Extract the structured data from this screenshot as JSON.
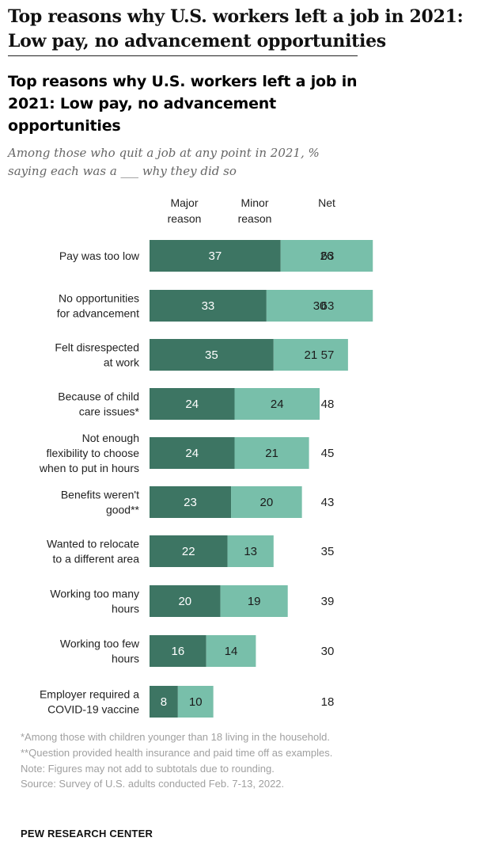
{
  "page": {
    "heading": "Top reasons why U.S. workers left a job in 2021: Low pay, no advancement opportunities"
  },
  "chart_data": {
    "type": "bar",
    "stacked": true,
    "orientation": "horizontal",
    "title": "Top reasons why U.S. workers left a job in 2021: Low pay, no advancement opportunities",
    "subtitle": "Among those who quit a job at any point in 2021, % saying each was a ___ why they did so",
    "column_headers": {
      "major": [
        "Major",
        "reason"
      ],
      "minor": [
        "Minor",
        "reason"
      ],
      "net": "Net"
    },
    "categories": [
      [
        "Pay was too low"
      ],
      [
        "No opportunities",
        "for advancement"
      ],
      [
        "Felt disrespected",
        "at work"
      ],
      [
        "Because of child",
        "care issues*"
      ],
      [
        "Not enough",
        "flexibility to choose",
        "when to put in hours"
      ],
      [
        "Benefits weren't",
        "good**"
      ],
      [
        "Wanted to relocate",
        "to a different area"
      ],
      [
        "Working too many",
        "hours"
      ],
      [
        "Working too few",
        "hours"
      ],
      [
        "Employer required a",
        "COVID-19 vaccine"
      ]
    ],
    "series": [
      {
        "name": "Major reason",
        "color": "#3d7563",
        "values": [
          37,
          33,
          35,
          24,
          24,
          23,
          22,
          20,
          16,
          8
        ]
      },
      {
        "name": "Minor reason",
        "color": "#78bfaa",
        "values": [
          26,
          30,
          21,
          24,
          21,
          20,
          13,
          19,
          14,
          10
        ]
      }
    ],
    "net": [
      63,
      63,
      57,
      48,
      45,
      43,
      35,
      39,
      30,
      18
    ],
    "xlim": [
      0,
      100
    ],
    "grid": false,
    "legend": "top (column headers)"
  },
  "footnotes": [
    "*Among those with children younger than 18 living in the household.",
    "**Question provided health insurance and paid time off as examples.",
    "Note: Figures may not add to subtotals due to rounding.",
    "Source: Survey of U.S. adults conducted Feb. 7-13, 2022."
  ],
  "brand": "PEW RESEARCH CENTER"
}
